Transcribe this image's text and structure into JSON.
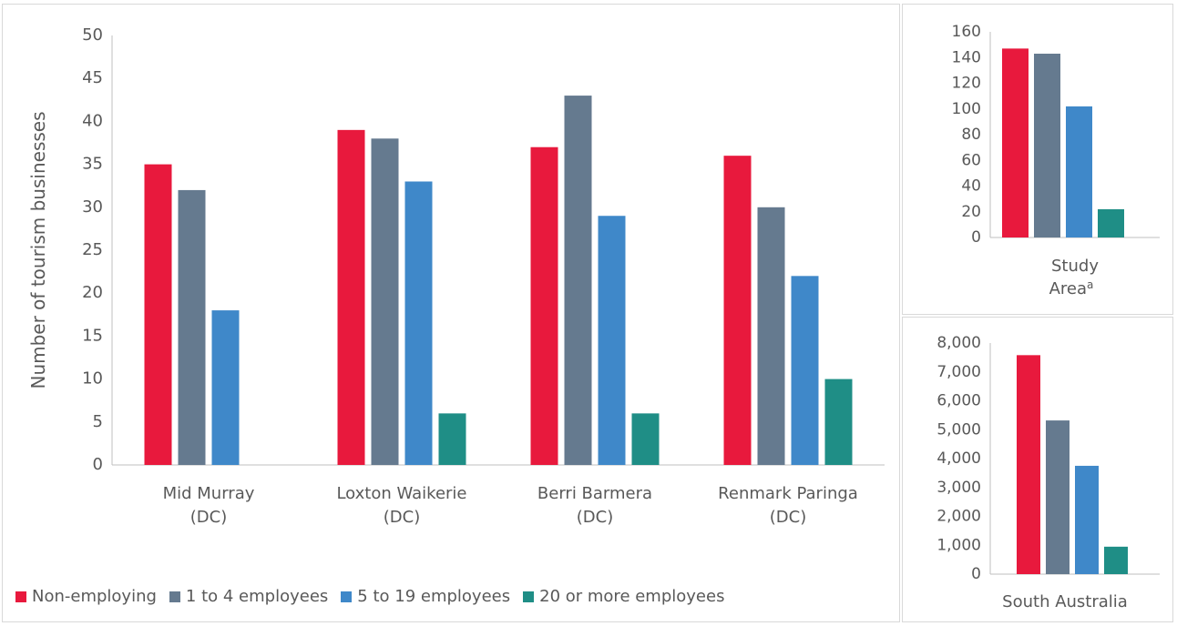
{
  "colors": {
    "non_employing": "#E8193D",
    "one_to_four": "#657A8F",
    "five_to_nineteen": "#3F88C9",
    "twenty_plus": "#1F8E86",
    "axis": "#BFBFBF",
    "text": "#595959"
  },
  "legend": [
    {
      "label": "Non-employing",
      "color": "#E8193D"
    },
    {
      "label": "1 to 4 employees",
      "color": "#657A8F"
    },
    {
      "label": "5 to 19 employees",
      "color": "#3F88C9"
    },
    {
      "label": "20 or more employees",
      "color": "#1F8E86"
    }
  ],
  "chart_data": [
    {
      "type": "bar",
      "ylabel": "Number of tourism businesses",
      "ylim": [
        0,
        50
      ],
      "yticks": [
        "0",
        "5",
        "10",
        "15",
        "20",
        "25",
        "30",
        "35",
        "40",
        "45",
        "50"
      ],
      "categories": [
        {
          "line1": "Mid Murray",
          "line2": "(DC)"
        },
        {
          "line1": "Loxton Waikerie",
          "line2": "(DC)"
        },
        {
          "line1": "Berri Barmera",
          "line2": "(DC)"
        },
        {
          "line1": "Renmark Paringa",
          "line2": "(DC)"
        }
      ],
      "series": [
        {
          "name": "Non-employing",
          "values": [
            35,
            39,
            37,
            36
          ]
        },
        {
          "name": "1 to 4 employees",
          "values": [
            32,
            38,
            43,
            30
          ]
        },
        {
          "name": "5 to 19 employees",
          "values": [
            18,
            33,
            29,
            22
          ]
        },
        {
          "name": "20 or more employees",
          "values": [
            0,
            6,
            6,
            10
          ]
        }
      ],
      "legend_position": "bottom",
      "grid": false
    },
    {
      "type": "bar",
      "ylim": [
        0,
        160
      ],
      "yticks": [
        "0",
        "20",
        "40",
        "60",
        "80",
        "100",
        "120",
        "140",
        "160"
      ],
      "category_line1": "Study",
      "category_line2": "Area",
      "category_superscript": "a",
      "series": [
        {
          "name": "Non-employing",
          "values": [
            147
          ]
        },
        {
          "name": "1 to 4 employees",
          "values": [
            143
          ]
        },
        {
          "name": "5 to 19 employees",
          "values": [
            102
          ]
        },
        {
          "name": "20 or more employees",
          "values": [
            22
          ]
        }
      ],
      "grid": false
    },
    {
      "type": "bar",
      "ylim": [
        0,
        8000
      ],
      "yticks": [
        "0",
        "1,000",
        "2,000",
        "3,000",
        "4,000",
        "5,000",
        "6,000",
        "7,000",
        "8,000"
      ],
      "category": "South Australia",
      "series": [
        {
          "name": "Non-employing",
          "values": [
            7580
          ]
        },
        {
          "name": "1 to 4 employees",
          "values": [
            5320
          ]
        },
        {
          "name": "5 to 19 employees",
          "values": [
            3750
          ]
        },
        {
          "name": "20 or more employees",
          "values": [
            950
          ]
        }
      ],
      "grid": false
    }
  ]
}
